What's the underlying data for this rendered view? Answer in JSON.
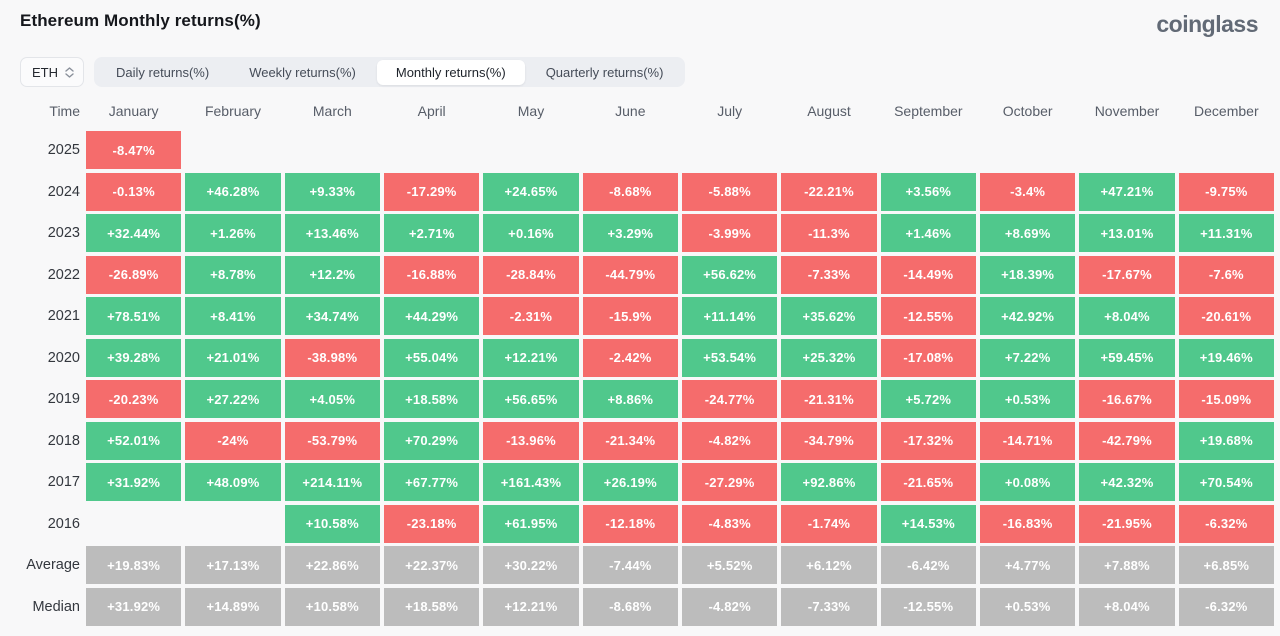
{
  "page": {
    "title": "Ethereum Monthly returns(%)",
    "brand": "coinglass"
  },
  "controls": {
    "symbol_select": {
      "value": "ETH"
    },
    "tabs": [
      {
        "label": "Daily returns(%)",
        "selected": false
      },
      {
        "label": "Weekly returns(%)",
        "selected": false
      },
      {
        "label": "Monthly returns(%)",
        "selected": true
      },
      {
        "label": "Quarterly returns(%)",
        "selected": false
      }
    ]
  },
  "colors": {
    "positive": "#50c88c",
    "negative": "#f56c6c",
    "summary": "#bcbcbc"
  },
  "table": {
    "time_header": "Time",
    "months": [
      "January",
      "February",
      "March",
      "April",
      "May",
      "June",
      "July",
      "August",
      "September",
      "October",
      "November",
      "December"
    ],
    "rows": [
      {
        "label": "2025",
        "type": "year",
        "cells": [
          "-8.47%",
          null,
          null,
          null,
          null,
          null,
          null,
          null,
          null,
          null,
          null,
          null
        ]
      },
      {
        "label": "2024",
        "type": "year",
        "cells": [
          "-0.13%",
          "+46.28%",
          "+9.33%",
          "-17.29%",
          "+24.65%",
          "-8.68%",
          "-5.88%",
          "-22.21%",
          "+3.56%",
          "-3.4%",
          "+47.21%",
          "-9.75%"
        ]
      },
      {
        "label": "2023",
        "type": "year",
        "cells": [
          "+32.44%",
          "+1.26%",
          "+13.46%",
          "+2.71%",
          "+0.16%",
          "+3.29%",
          "-3.99%",
          "-11.3%",
          "+1.46%",
          "+8.69%",
          "+13.01%",
          "+11.31%"
        ]
      },
      {
        "label": "2022",
        "type": "year",
        "cells": [
          "-26.89%",
          "+8.78%",
          "+12.2%",
          "-16.88%",
          "-28.84%",
          "-44.79%",
          "+56.62%",
          "-7.33%",
          "-14.49%",
          "+18.39%",
          "-17.67%",
          "-7.6%"
        ]
      },
      {
        "label": "2021",
        "type": "year",
        "cells": [
          "+78.51%",
          "+8.41%",
          "+34.74%",
          "+44.29%",
          "-2.31%",
          "-15.9%",
          "+11.14%",
          "+35.62%",
          "-12.55%",
          "+42.92%",
          "+8.04%",
          "-20.61%"
        ]
      },
      {
        "label": "2020",
        "type": "year",
        "cells": [
          "+39.28%",
          "+21.01%",
          "-38.98%",
          "+55.04%",
          "+12.21%",
          "-2.42%",
          "+53.54%",
          "+25.32%",
          "-17.08%",
          "+7.22%",
          "+59.45%",
          "+19.46%"
        ]
      },
      {
        "label": "2019",
        "type": "year",
        "cells": [
          "-20.23%",
          "+27.22%",
          "+4.05%",
          "+18.58%",
          "+56.65%",
          "+8.86%",
          "-24.77%",
          "-21.31%",
          "+5.72%",
          "+0.53%",
          "-16.67%",
          "-15.09%"
        ]
      },
      {
        "label": "2018",
        "type": "year",
        "cells": [
          "+52.01%",
          "-24%",
          "-53.79%",
          "+70.29%",
          "-13.96%",
          "-21.34%",
          "-4.82%",
          "-34.79%",
          "-17.32%",
          "-14.71%",
          "-42.79%",
          "+19.68%"
        ]
      },
      {
        "label": "2017",
        "type": "year",
        "cells": [
          "+31.92%",
          "+48.09%",
          "+214.11%",
          "+67.77%",
          "+161.43%",
          "+26.19%",
          "-27.29%",
          "+92.86%",
          "-21.65%",
          "+0.08%",
          "+42.32%",
          "+70.54%"
        ]
      },
      {
        "label": "2016",
        "type": "year",
        "cells": [
          null,
          null,
          "+10.58%",
          "-23.18%",
          "+61.95%",
          "-12.18%",
          "-4.83%",
          "-1.74%",
          "+14.53%",
          "-16.83%",
          "-21.95%",
          "-6.32%"
        ]
      },
      {
        "label": "Average",
        "type": "summary",
        "cells": [
          "+19.83%",
          "+17.13%",
          "+22.86%",
          "+22.37%",
          "+30.22%",
          "-7.44%",
          "+5.52%",
          "+6.12%",
          "-6.42%",
          "+4.77%",
          "+7.88%",
          "+6.85%"
        ]
      },
      {
        "label": "Median",
        "type": "summary",
        "cells": [
          "+31.92%",
          "+14.89%",
          "+10.58%",
          "+18.58%",
          "+12.21%",
          "-8.68%",
          "-4.82%",
          "-7.33%",
          "-12.55%",
          "+0.53%",
          "+8.04%",
          "-6.32%"
        ]
      }
    ]
  },
  "chart_data": {
    "type": "heatmap",
    "title": "Ethereum Monthly returns(%)",
    "x": [
      "January",
      "February",
      "March",
      "April",
      "May",
      "June",
      "July",
      "August",
      "September",
      "October",
      "November",
      "December"
    ],
    "units": "%",
    "color_rule": "green = positive return, red = negative return, gray = summary rows (Average/Median)",
    "rows": [
      {
        "name": "2025",
        "values": [
          -8.47,
          null,
          null,
          null,
          null,
          null,
          null,
          null,
          null,
          null,
          null,
          null
        ]
      },
      {
        "name": "2024",
        "values": [
          -0.13,
          46.28,
          9.33,
          -17.29,
          24.65,
          -8.68,
          -5.88,
          -22.21,
          3.56,
          -3.4,
          47.21,
          -9.75
        ]
      },
      {
        "name": "2023",
        "values": [
          32.44,
          1.26,
          13.46,
          2.71,
          0.16,
          3.29,
          -3.99,
          -11.3,
          1.46,
          8.69,
          13.01,
          11.31
        ]
      },
      {
        "name": "2022",
        "values": [
          -26.89,
          8.78,
          12.2,
          -16.88,
          -28.84,
          -44.79,
          56.62,
          -7.33,
          -14.49,
          18.39,
          -17.67,
          -7.6
        ]
      },
      {
        "name": "2021",
        "values": [
          78.51,
          8.41,
          34.74,
          44.29,
          -2.31,
          -15.9,
          11.14,
          35.62,
          -12.55,
          42.92,
          8.04,
          -20.61
        ]
      },
      {
        "name": "2020",
        "values": [
          39.28,
          21.01,
          -38.98,
          55.04,
          12.21,
          -2.42,
          53.54,
          25.32,
          -17.08,
          7.22,
          59.45,
          19.46
        ]
      },
      {
        "name": "2019",
        "values": [
          -20.23,
          27.22,
          4.05,
          18.58,
          56.65,
          8.86,
          -24.77,
          -21.31,
          5.72,
          0.53,
          -16.67,
          -15.09
        ]
      },
      {
        "name": "2018",
        "values": [
          52.01,
          -24,
          -53.79,
          70.29,
          -13.96,
          -21.34,
          -4.82,
          -34.79,
          -17.32,
          -14.71,
          -42.79,
          19.68
        ]
      },
      {
        "name": "2017",
        "values": [
          31.92,
          48.09,
          214.11,
          67.77,
          161.43,
          26.19,
          -27.29,
          92.86,
          -21.65,
          0.08,
          42.32,
          70.54
        ]
      },
      {
        "name": "2016",
        "values": [
          null,
          null,
          10.58,
          -23.18,
          61.95,
          -12.18,
          -4.83,
          -1.74,
          14.53,
          -16.83,
          -21.95,
          -6.32
        ]
      },
      {
        "name": "Average",
        "values": [
          19.83,
          17.13,
          22.86,
          22.37,
          30.22,
          -7.44,
          5.52,
          6.12,
          -6.42,
          4.77,
          7.88,
          6.85
        ]
      },
      {
        "name": "Median",
        "values": [
          31.92,
          14.89,
          10.58,
          18.58,
          12.21,
          -8.68,
          -4.82,
          -7.33,
          -12.55,
          0.53,
          8.04,
          -6.32
        ]
      }
    ]
  }
}
